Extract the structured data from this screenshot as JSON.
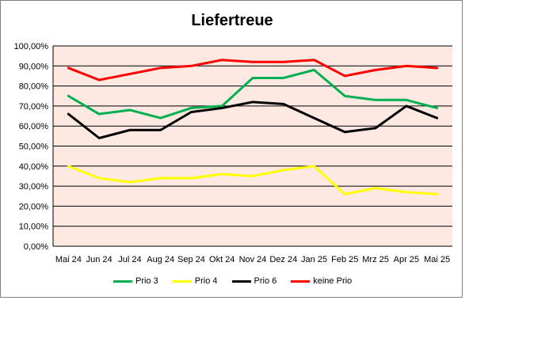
{
  "chart_data": {
    "type": "line",
    "title": "Liefertreue",
    "xlabel": "",
    "ylabel": "",
    "ylim": [
      0,
      100
    ],
    "yticks": [
      "0,00%",
      "10,00%",
      "20,00%",
      "30,00%",
      "40,00%",
      "50,00%",
      "60,00%",
      "70,00%",
      "80,00%",
      "90,00%",
      "100,00%"
    ],
    "categories": [
      "Mai 24",
      "Jun 24",
      "Jul 24",
      "Aug 24",
      "Sep 24",
      "Okt 24",
      "Nov 24",
      "Dez 24",
      "Jan 25",
      "Feb 25",
      "Mrz 25",
      "Apr 25",
      "Mai 25"
    ],
    "series": [
      {
        "name": "Prio 3",
        "color": "#00b050",
        "values": [
          75,
          66,
          68,
          64,
          69,
          70,
          84,
          84,
          88,
          75,
          73,
          73,
          69
        ]
      },
      {
        "name": "Prio 4",
        "color": "#ffff00",
        "values": [
          40,
          34,
          32,
          34,
          34,
          36,
          35,
          38,
          40,
          26,
          29,
          27,
          26
        ]
      },
      {
        "name": "Prio 6",
        "color": "#000000",
        "values": [
          66,
          54,
          58,
          58,
          67,
          69,
          72,
          71,
          64,
          57,
          59,
          70,
          64
        ]
      },
      {
        "name": "keine Prio",
        "color": "#ff0000",
        "values": [
          89,
          83,
          86,
          89,
          90,
          93,
          92,
          92,
          93,
          85,
          88,
          90,
          89
        ]
      }
    ],
    "grid": true,
    "legend": "bottom",
    "plot_background": "#fde9e2"
  }
}
